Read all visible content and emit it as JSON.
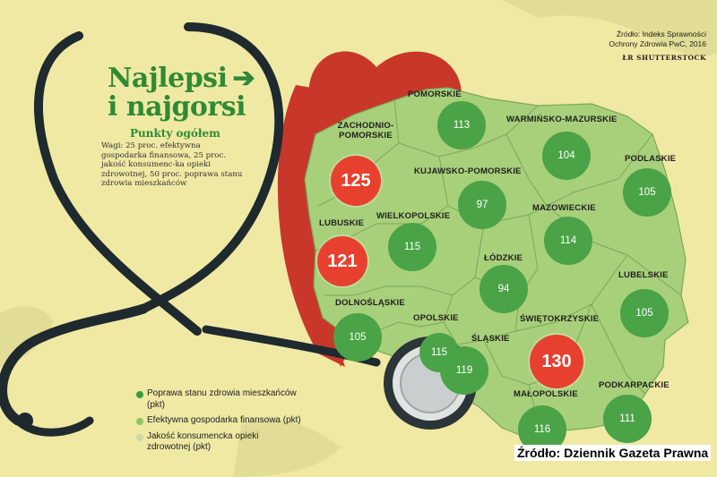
{
  "title_line1": "Najlepsi",
  "title_line2": "i najgorsi",
  "subtitle": "Punkty ogółem",
  "weights_note": "Wagi: 25 proc. efektywna gospodarka finansowa, 25 proc. jakość konsumenc-ka opieki zdrowotnej, 50 proc. poprawa stanu zdrowia mieszkańców",
  "source_line1": "Źródło: Indeks Sprawności",
  "source_line2": "Ochrony Zdrowia PwC, 2016",
  "photo_credit": "ŁR   SHUTTERSTOCK",
  "footer_source": "Źródło: Dziennik Gazeta Prawna",
  "colors": {
    "green": "#4aa346",
    "red": "#e8402f",
    "map_fill": "#a8cf7a",
    "heart": "#c8372a",
    "background": "#efe9a4"
  },
  "regions": [
    {
      "name": "POMORSKIE",
      "points": 113,
      "highlight": false
    },
    {
      "name": "WARMIŃSKO-MAZURSKIE",
      "points": 104,
      "highlight": false
    },
    {
      "name": "ZACHODNIO-POMORSKIE",
      "points": 125,
      "highlight": true
    },
    {
      "name": "PODLASKIE",
      "points": 105,
      "highlight": false
    },
    {
      "name": "KUJAWSKO-POMORSKIE",
      "points": 97,
      "highlight": false
    },
    {
      "name": "LUBUSKIE",
      "points": 121,
      "highlight": true
    },
    {
      "name": "WIELKOPOLSKIE",
      "points": 115,
      "highlight": false
    },
    {
      "name": "MAZOWIECKIE",
      "points": 114,
      "highlight": false
    },
    {
      "name": "ŁÓDZKIE",
      "points": 94,
      "highlight": false
    },
    {
      "name": "LUBELSKIE",
      "points": 105,
      "highlight": false
    },
    {
      "name": "DOLNOŚLĄSKIE",
      "points": 105,
      "highlight": false
    },
    {
      "name": "OPOLSKIE",
      "points": 115,
      "highlight": false
    },
    {
      "name": "ŚWIĘTOKRZYSKIE",
      "points": 130,
      "highlight": true
    },
    {
      "name": "ŚLĄSKIE",
      "points": 119,
      "highlight": false
    },
    {
      "name": "MAŁOPOLSKIE",
      "points": 116,
      "highlight": false
    },
    {
      "name": "PODKARPACKIE",
      "points": 111,
      "highlight": false
    }
  ],
  "legend": [
    {
      "label": "Poprawa stanu zdrowia mieszkańców (pkt)",
      "color": "#3d9a3a"
    },
    {
      "label": "Efektywna gospodarka finansowa (pkt)",
      "color": "#8fc563"
    },
    {
      "label": "Jakość konsumencka opieki zdrowotnej (pkt)",
      "color": "#c9dca8"
    }
  ]
}
